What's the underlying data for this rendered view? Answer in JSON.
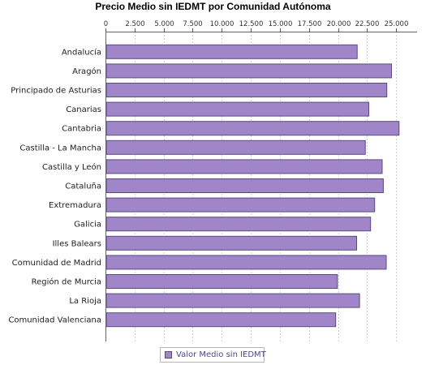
{
  "chart_data": {
    "type": "bar",
    "orientation": "horizontal",
    "title": "Precio Medio sin IEDMT por Comunidad Autónoma",
    "xlabel": "",
    "ylabel": "",
    "xlim": [
      0,
      26800
    ],
    "ticks": [
      0,
      2500,
      5000,
      7500,
      10000,
      12500,
      15000,
      17500,
      20000,
      22500,
      25000
    ],
    "tick_labels": [
      "0",
      "2.500",
      "5.000",
      "7.500",
      "10.000",
      "12.500",
      "15.000",
      "17.500",
      "20.000",
      "22.500",
      "25.000"
    ],
    "axis_position": "top",
    "grid": true,
    "legend_position": "bottom",
    "categories": [
      "Andalucía",
      "Aragón",
      "Principado de Asturias",
      "Canarias",
      "Cantabria",
      "Castilla - La Mancha",
      "Castilla y León",
      "Cataluña",
      "Extremadura",
      "Galicia",
      "Illes Balears",
      "Comunidad de Madrid",
      "Región de Murcia",
      "La Rioja",
      "Comunidad Valenciana"
    ],
    "series": [
      {
        "name": "Valor Medio sin IEDMT",
        "color": "#a086c8",
        "values": [
          21650,
          24600,
          24200,
          22650,
          25250,
          22350,
          23800,
          23900,
          23150,
          22800,
          21600,
          24150,
          19950,
          21850,
          19800
        ]
      }
    ]
  },
  "colors": {
    "bar_fill": "#a086c8",
    "bar_stroke": "#5a4a80",
    "grid": "#d4d4d4",
    "legend_text": "#4b4b8c"
  }
}
